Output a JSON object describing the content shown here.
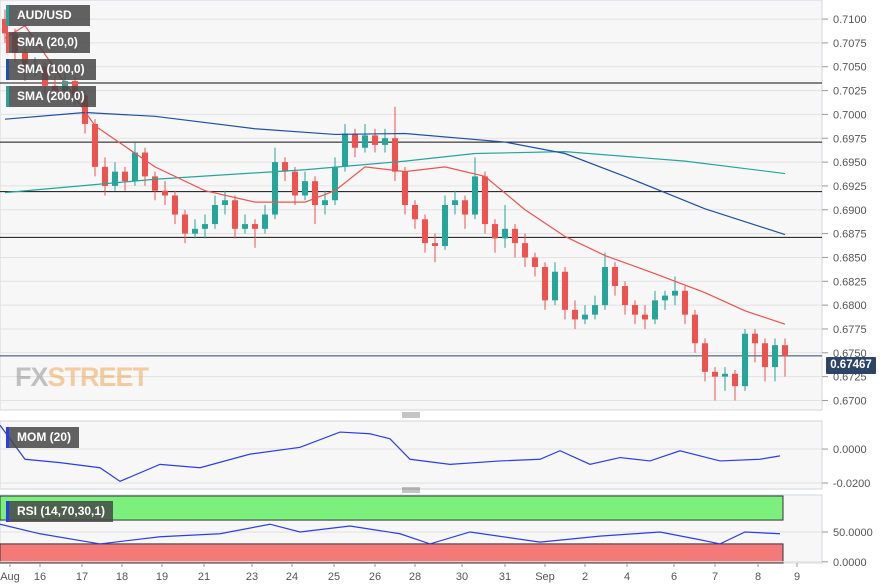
{
  "chart_data": [
    {
      "type": "candlestick",
      "title": "AUD/USD",
      "legend": [
        {
          "label": "AUD/USD",
          "color": "#26a69a"
        },
        {
          "label": "SMA (20,0)",
          "color": "#ef5350"
        },
        {
          "label": "SMA (100,0)",
          "color": "#1f4fa8"
        },
        {
          "label": "SMA (200,0)",
          "color": "#26a69a"
        }
      ],
      "ylim": [
        0.669,
        0.712
      ],
      "y_ticks": [
        "0.7100",
        "0.7075",
        "0.7050",
        "0.7025",
        "0.7000",
        "0.6975",
        "0.6950",
        "0.6925",
        "0.6900",
        "0.6875",
        "0.6850",
        "0.6825",
        "0.6800",
        "0.6775",
        "0.6750",
        "0.6725",
        "0.6700"
      ],
      "current_price": "0.67467",
      "horizontal_levels": [
        0.7033,
        0.6971,
        0.6919,
        0.6871,
        0.67467
      ],
      "colors": {
        "up": "#26a69a",
        "down": "#ef5350",
        "sma20": "#ef5350",
        "sma100": "#1f4fa8",
        "sma200": "#26a69a"
      },
      "ohlc": [
        [
          0.71,
          0.711,
          0.7075,
          0.7085
        ],
        [
          0.7085,
          0.709,
          0.7055,
          0.7065
        ],
        [
          0.7065,
          0.707,
          0.7035,
          0.7045
        ],
        [
          0.7045,
          0.706,
          0.704,
          0.705
        ],
        [
          0.705,
          0.7055,
          0.702,
          0.703
        ],
        [
          0.703,
          0.704,
          0.7015,
          0.7025
        ],
        [
          0.7025,
          0.7045,
          0.702,
          0.7035
        ],
        [
          0.7035,
          0.704,
          0.701,
          0.702
        ],
        [
          0.702,
          0.7025,
          0.698,
          0.699
        ],
        [
          0.699,
          0.6995,
          0.6935,
          0.6945
        ],
        [
          0.6945,
          0.6955,
          0.6915,
          0.6925
        ],
        [
          0.6925,
          0.695,
          0.692,
          0.694
        ],
        [
          0.694,
          0.6945,
          0.692,
          0.693
        ],
        [
          0.693,
          0.697,
          0.6925,
          0.696
        ],
        [
          0.696,
          0.6965,
          0.6925,
          0.6935
        ],
        [
          0.6935,
          0.694,
          0.691,
          0.692
        ],
        [
          0.692,
          0.693,
          0.6905,
          0.6915
        ],
        [
          0.6915,
          0.692,
          0.6885,
          0.6895
        ],
        [
          0.6895,
          0.69,
          0.6865,
          0.6875
        ],
        [
          0.6875,
          0.689,
          0.687,
          0.688
        ],
        [
          0.688,
          0.6895,
          0.687,
          0.6885
        ],
        [
          0.6885,
          0.6915,
          0.688,
          0.6905
        ],
        [
          0.6905,
          0.692,
          0.6895,
          0.691
        ],
        [
          0.691,
          0.6915,
          0.687,
          0.688
        ],
        [
          0.688,
          0.6895,
          0.6875,
          0.6885
        ],
        [
          0.6885,
          0.689,
          0.686,
          0.688
        ],
        [
          0.688,
          0.6905,
          0.6875,
          0.6895
        ],
        [
          0.6895,
          0.6965,
          0.689,
          0.695
        ],
        [
          0.695,
          0.6955,
          0.693,
          0.694
        ],
        [
          0.694,
          0.6945,
          0.6905,
          0.6915
        ],
        [
          0.6915,
          0.694,
          0.691,
          0.693
        ],
        [
          0.693,
          0.6935,
          0.6885,
          0.6905
        ],
        [
          0.6905,
          0.692,
          0.6895,
          0.691
        ],
        [
          0.691,
          0.6955,
          0.6905,
          0.6945
        ],
        [
          0.6945,
          0.699,
          0.694,
          0.698
        ],
        [
          0.698,
          0.6985,
          0.6955,
          0.6965
        ],
        [
          0.6965,
          0.699,
          0.696,
          0.6978
        ],
        [
          0.6978,
          0.6985,
          0.696,
          0.6968
        ],
        [
          0.6968,
          0.6985,
          0.696,
          0.6975
        ],
        [
          0.6975,
          0.7008,
          0.693,
          0.694
        ],
        [
          0.694,
          0.6945,
          0.6895,
          0.6905
        ],
        [
          0.6905,
          0.691,
          0.688,
          0.689
        ],
        [
          0.689,
          0.6895,
          0.6855,
          0.6865
        ],
        [
          0.6865,
          0.6875,
          0.6845,
          0.6862
        ],
        [
          0.6862,
          0.6915,
          0.6858,
          0.6905
        ],
        [
          0.6905,
          0.692,
          0.6895,
          0.691
        ],
        [
          0.691,
          0.6915,
          0.688,
          0.6895
        ],
        [
          0.6895,
          0.6955,
          0.689,
          0.6935
        ],
        [
          0.6935,
          0.694,
          0.6875,
          0.6885
        ],
        [
          0.6885,
          0.689,
          0.6855,
          0.687
        ],
        [
          0.687,
          0.6905,
          0.686,
          0.688
        ],
        [
          0.688,
          0.6885,
          0.685,
          0.6865
        ],
        [
          0.6865,
          0.6875,
          0.684,
          0.685
        ],
        [
          0.685,
          0.6855,
          0.683,
          0.684
        ],
        [
          0.684,
          0.6845,
          0.6795,
          0.6805
        ],
        [
          0.6805,
          0.6845,
          0.68,
          0.6835
        ],
        [
          0.6835,
          0.684,
          0.6785,
          0.6795
        ],
        [
          0.6795,
          0.6805,
          0.6775,
          0.6785
        ],
        [
          0.6785,
          0.68,
          0.678,
          0.679
        ],
        [
          0.679,
          0.681,
          0.6785,
          0.68
        ],
        [
          0.68,
          0.6855,
          0.6795,
          0.684
        ],
        [
          0.684,
          0.6845,
          0.681,
          0.682
        ],
        [
          0.682,
          0.6825,
          0.679,
          0.68
        ],
        [
          0.68,
          0.6805,
          0.678,
          0.679
        ],
        [
          0.679,
          0.68,
          0.6775,
          0.6785
        ],
        [
          0.6785,
          0.6815,
          0.678,
          0.6805
        ],
        [
          0.6805,
          0.6815,
          0.6795,
          0.681
        ],
        [
          0.681,
          0.683,
          0.68,
          0.6815
        ],
        [
          0.6815,
          0.682,
          0.678,
          0.679
        ],
        [
          0.679,
          0.6795,
          0.675,
          0.676
        ],
        [
          0.676,
          0.6765,
          0.672,
          0.673
        ],
        [
          0.673,
          0.6735,
          0.67,
          0.6725
        ],
        [
          0.6725,
          0.6735,
          0.671,
          0.6728
        ],
        [
          0.6728,
          0.6732,
          0.67,
          0.6715
        ],
        [
          0.6715,
          0.6775,
          0.671,
          0.677
        ],
        [
          0.677,
          0.6775,
          0.674,
          0.676
        ],
        [
          0.676,
          0.6765,
          0.672,
          0.6735
        ],
        [
          0.6735,
          0.6765,
          0.672,
          0.6758
        ],
        [
          0.6758,
          0.6765,
          0.6725,
          0.67467
        ]
      ],
      "sma20": [
        [
          0,
          0.708
        ],
        [
          2,
          0.7093
        ],
        [
          9,
          0.6988
        ],
        [
          15,
          0.6945
        ],
        [
          20,
          0.692
        ],
        [
          25,
          0.6908
        ],
        [
          30,
          0.6908
        ],
        [
          33,
          0.692
        ],
        [
          36,
          0.6945
        ],
        [
          40,
          0.694
        ],
        [
          44,
          0.6945
        ],
        [
          48,
          0.6935
        ],
        [
          52,
          0.69
        ],
        [
          56,
          0.6872
        ],
        [
          60,
          0.6852
        ],
        [
          65,
          0.6833
        ],
        [
          70,
          0.6813
        ],
        [
          74,
          0.6794
        ],
        [
          78,
          0.678
        ]
      ],
      "sma100": [
        [
          0,
          0.6995
        ],
        [
          8,
          0.7002
        ],
        [
          15,
          0.6998
        ],
        [
          25,
          0.6985
        ],
        [
          33,
          0.6979
        ],
        [
          40,
          0.698
        ],
        [
          50,
          0.6971
        ],
        [
          56,
          0.6959
        ],
        [
          62,
          0.6935
        ],
        [
          70,
          0.6901
        ],
        [
          78,
          0.6874
        ]
      ],
      "sma200": [
        [
          0,
          0.6918
        ],
        [
          15,
          0.6932
        ],
        [
          30,
          0.6942
        ],
        [
          40,
          0.6951
        ],
        [
          47,
          0.6959
        ],
        [
          56,
          0.6961
        ],
        [
          68,
          0.6951
        ],
        [
          78,
          0.6938
        ]
      ],
      "x_ticks": [
        [
          "Aug",
          0.5
        ],
        [
          "16",
          3.5
        ],
        [
          "17",
          7.7
        ],
        [
          "18",
          11.7
        ],
        [
          "19",
          15.7
        ],
        [
          "21",
          19.9
        ],
        [
          "23",
          24.7
        ],
        [
          "24",
          28.7
        ],
        [
          "25",
          32.9
        ],
        [
          "26",
          37
        ],
        [
          "28",
          41
        ],
        [
          "30",
          45.7
        ],
        [
          "31",
          50
        ],
        [
          "Sep",
          54
        ],
        [
          "2",
          58
        ],
        [
          "4",
          62.2
        ],
        [
          "6",
          66.9
        ],
        [
          "7",
          71
        ],
        [
          "8",
          75.3
        ],
        [
          "9",
          79.2
        ]
      ]
    },
    {
      "type": "line",
      "title": "MOM (20)",
      "color": "#2a3cf0",
      "ylim": [
        -0.0235,
        0.0165
      ],
      "y_ticks": [
        "0.0000",
        "-0.0200"
      ],
      "points": [
        [
          -0.5,
          0.014
        ],
        [
          2,
          -0.006
        ],
        [
          5.5,
          -0.008
        ],
        [
          9.5,
          -0.011
        ],
        [
          11.5,
          -0.019
        ],
        [
          15.5,
          -0.009
        ],
        [
          19.5,
          -0.011
        ],
        [
          24.5,
          -0.003
        ],
        [
          29.5,
          0.001
        ],
        [
          33.5,
          0.01
        ],
        [
          36.5,
          0.009
        ],
        [
          38.5,
          0.006
        ],
        [
          40.5,
          -0.006
        ],
        [
          44.5,
          -0.009
        ],
        [
          49.5,
          -0.007
        ],
        [
          53.5,
          -0.006
        ],
        [
          55.5,
          -0.001
        ],
        [
          58.5,
          -0.009
        ],
        [
          61.5,
          -0.005
        ],
        [
          64.5,
          -0.007
        ],
        [
          67.5,
          -0.001
        ],
        [
          71.5,
          -0.007
        ],
        [
          75.5,
          -0.006
        ],
        [
          77.5,
          -0.004
        ]
      ]
    },
    {
      "type": "line",
      "title": "RSI (14,70,30,1)",
      "color": "#2a3cf0",
      "ylim": [
        -2,
        112
      ],
      "y_ticks": [
        "50.0000",
        "0.0000"
      ],
      "overbought": 70,
      "oversold": 30,
      "zone_colors": {
        "overbought": "#7cf07c",
        "oversold": "#f47a7a"
      },
      "points": [
        [
          -0.5,
          63
        ],
        [
          3.5,
          47
        ],
        [
          9.5,
          30
        ],
        [
          15.5,
          42
        ],
        [
          21.5,
          47
        ],
        [
          26.5,
          63
        ],
        [
          29.5,
          50
        ],
        [
          34.5,
          60
        ],
        [
          39.5,
          47
        ],
        [
          42.5,
          30
        ],
        [
          46.5,
          50
        ],
        [
          53.5,
          33
        ],
        [
          59.5,
          43
        ],
        [
          65.5,
          50
        ],
        [
          69.5,
          37
        ],
        [
          71.5,
          30
        ],
        [
          74,
          50
        ],
        [
          77.5,
          47
        ]
      ]
    }
  ],
  "watermark": {
    "fx": "FX",
    "street": "STREET"
  }
}
